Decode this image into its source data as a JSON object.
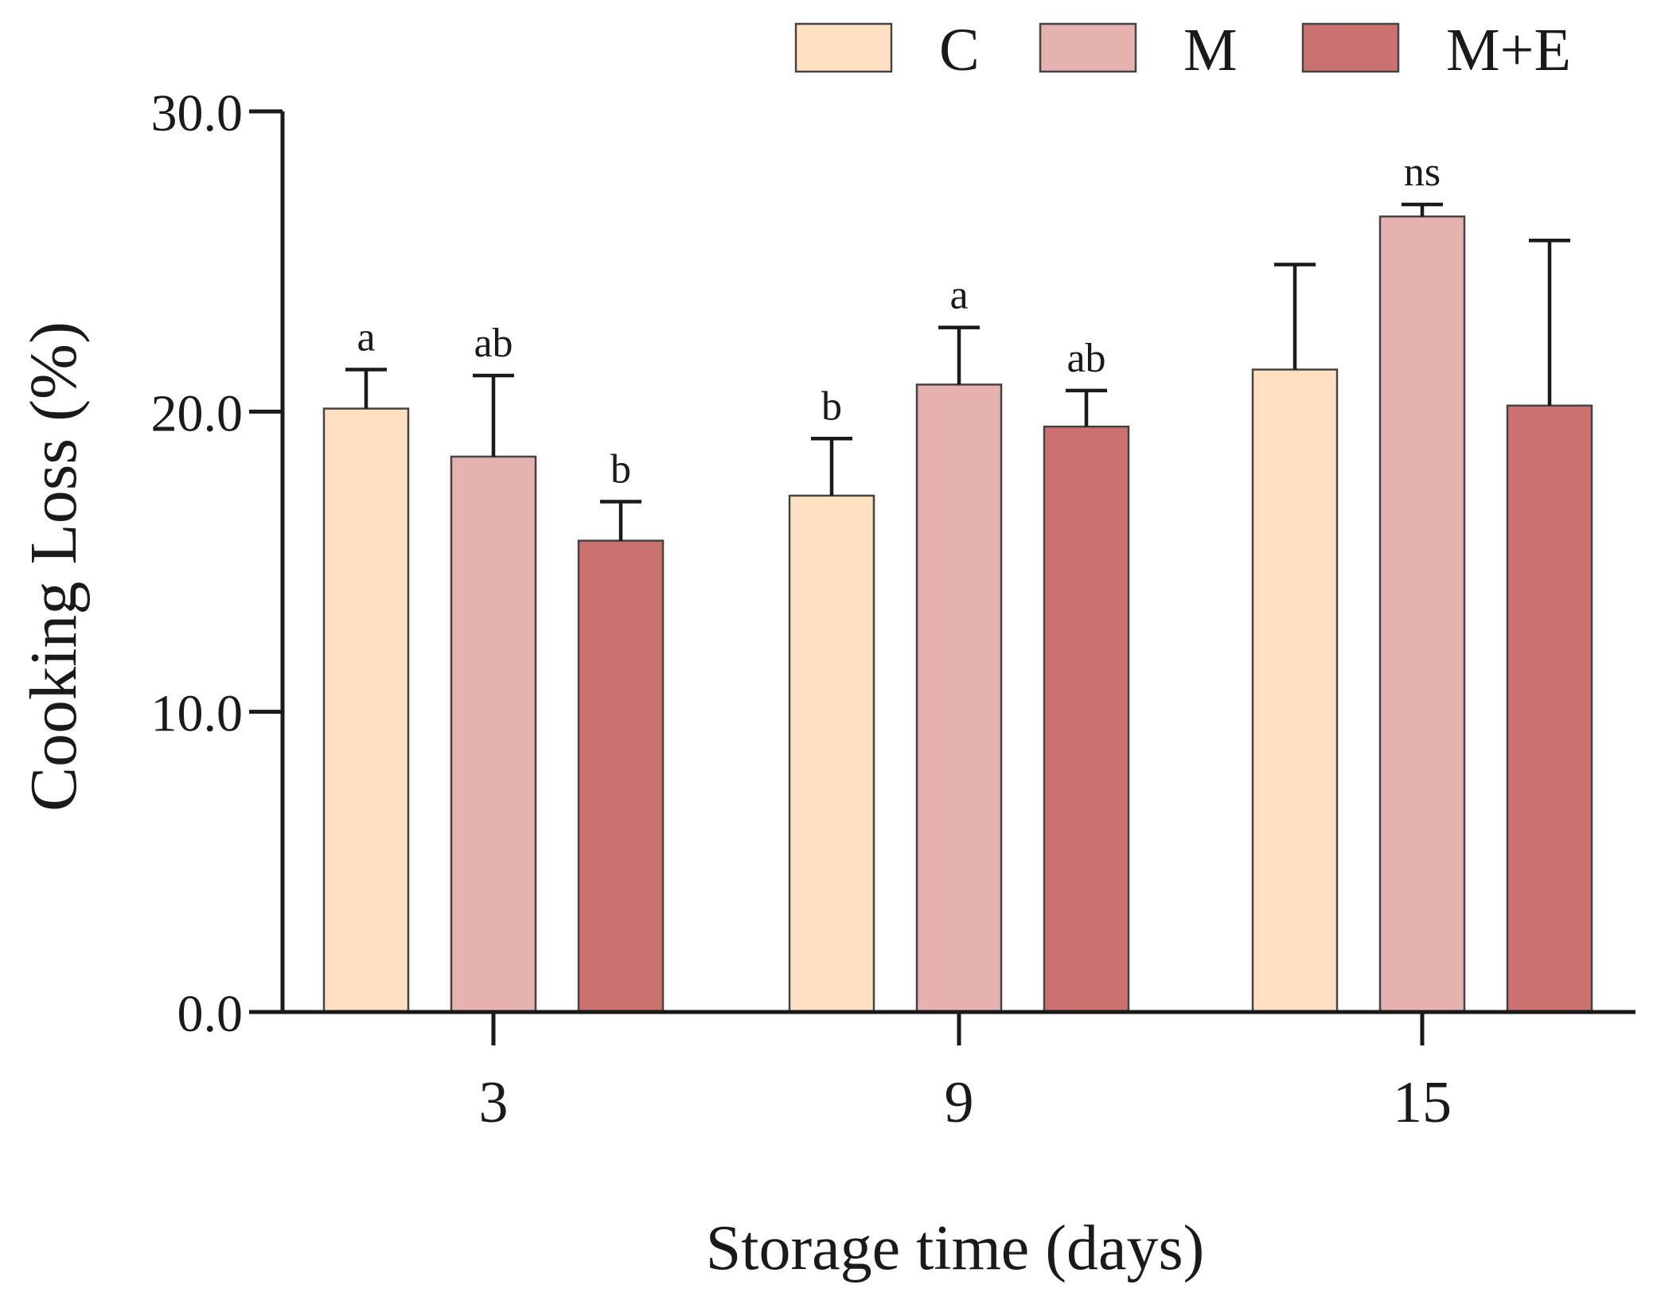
{
  "chart_data": {
    "type": "bar",
    "xlabel": "Storage time (days)",
    "ylabel": "Cooking Loss (%)",
    "ylim": [
      0,
      30
    ],
    "yticks": [
      "0.0",
      "10.0",
      "20.0",
      "30.0"
    ],
    "categories": [
      "3",
      "9",
      "15"
    ],
    "legend_position": "top-right",
    "series": [
      {
        "name": "C",
        "color": "#FFE1C2",
        "values": [
          20.1,
          17.2,
          21.4
        ],
        "errors": [
          1.3,
          1.9,
          3.5
        ],
        "letters": [
          "a",
          "b",
          ""
        ]
      },
      {
        "name": "M",
        "color": "#E5B2B0",
        "values": [
          18.5,
          20.9,
          26.5
        ],
        "errors": [
          2.7,
          1.9,
          0.4
        ],
        "letters": [
          "ab",
          "a",
          "ns"
        ]
      },
      {
        "name": "M+E",
        "color": "#CB7271",
        "values": [
          15.7,
          19.5,
          20.2
        ],
        "errors": [
          1.3,
          1.2,
          5.5
        ],
        "letters": [
          "b",
          "ab",
          ""
        ]
      }
    ]
  }
}
